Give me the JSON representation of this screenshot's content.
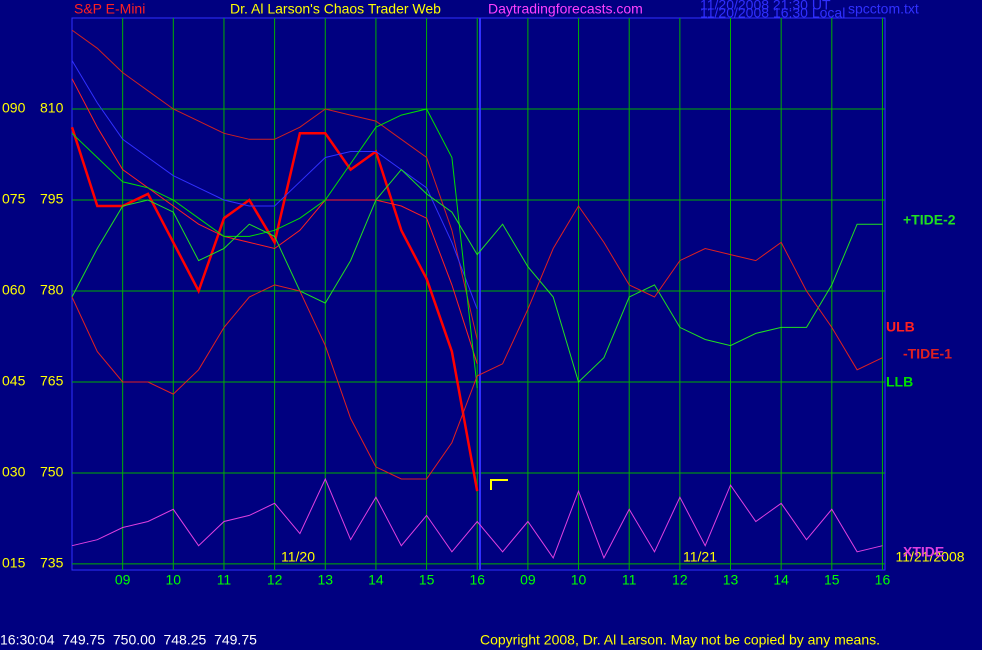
{
  "chart_data": {
    "type": "line",
    "title": "Dr. Al Larson's Chaos Trader Web",
    "symbol": "S&P E-Mini",
    "site": "Daytradingforecasts.com",
    "time_ut": "11/20/2008 21:30 UT",
    "time_local": "11/20/2008 16:30 Local",
    "file": "spcctom.txt",
    "status": "16:30:04  749.75  750.00  748.25  749.75",
    "copyright": "Copyright 2008, Dr. Al Larson. May not be copied by any means.",
    "date_labels": [
      "11/20",
      "11/21",
      "11/21/2008"
    ],
    "x": [
      0,
      0.5,
      1,
      1.5,
      2,
      2.5,
      3,
      3.5,
      4,
      4.5,
      5,
      5.5,
      6,
      6.5,
      7,
      7.5,
      8,
      8.5,
      9,
      9.5,
      10,
      10.5,
      11,
      11.5,
      12,
      12.5,
      13,
      13.5,
      14,
      14.5,
      15,
      15.5,
      16
    ],
    "xlim": [
      0,
      16.05
    ],
    "xticks": [
      {
        "value": 1,
        "label": "09"
      },
      {
        "value": 2,
        "label": "10"
      },
      {
        "value": 3,
        "label": "11"
      },
      {
        "value": 4,
        "label": "12"
      },
      {
        "value": 5,
        "label": "13"
      },
      {
        "value": 6,
        "label": "14"
      },
      {
        "value": 7,
        "label": "15"
      },
      {
        "value": 8,
        "label": "16"
      },
      {
        "value": 9,
        "label": "09"
      },
      {
        "value": 10,
        "label": "10"
      },
      {
        "value": 11,
        "label": "11"
      },
      {
        "value": 12,
        "label": "12"
      },
      {
        "value": 13,
        "label": "13"
      },
      {
        "value": 14,
        "label": "14"
      },
      {
        "value": 15,
        "label": "15"
      },
      {
        "value": 16,
        "label": "16"
      }
    ],
    "ylim": [
      734,
      825
    ],
    "yticks": [
      735,
      750,
      765,
      780,
      795,
      810
    ],
    "y2lim": [
      14,
      105
    ],
    "y2ticks": [
      {
        "value": 15,
        "label": "015"
      },
      {
        "value": 30,
        "label": "030"
      },
      {
        "value": 45,
        "label": "045"
      },
      {
        "value": 60,
        "label": "060"
      },
      {
        "value": 75,
        "label": "075"
      },
      {
        "value": 90,
        "label": "090"
      }
    ],
    "grid": true,
    "series": [
      {
        "color": "#ff0000",
        "values": [
          807,
          794,
          794,
          796,
          788,
          780,
          792,
          795,
          788,
          806,
          806,
          800,
          803,
          790,
          782,
          770,
          747,
          null,
          null,
          null,
          null,
          null,
          null,
          null,
          null,
          null,
          null,
          null,
          null,
          null,
          null,
          null,
          null
        ]
      },
      {
        "color": "#d02020",
        "values": [
          823,
          820,
          816,
          813,
          810,
          808,
          806,
          805,
          805,
          807,
          810,
          809,
          808,
          805,
          802,
          790,
          772,
          null,
          null,
          null,
          null,
          null,
          null,
          null,
          null,
          null,
          null,
          null,
          null,
          null,
          null,
          null,
          null
        ]
      },
      {
        "color": "#3030ff",
        "values": [
          818,
          811,
          805,
          802,
          799,
          797,
          795,
          794,
          794,
          798,
          802,
          803,
          803,
          800,
          797,
          788,
          777,
          null,
          null,
          null,
          null,
          null,
          null,
          null,
          null,
          null,
          null,
          null,
          null,
          null,
          null,
          null,
          null
        ]
      },
      {
        "name": "ULB",
        "color": "#ff2020",
        "values": [
          815,
          807,
          800,
          797,
          794,
          791,
          789,
          788,
          787,
          790,
          795,
          795,
          795,
          794,
          792,
          781,
          768,
          null,
          null,
          null,
          null,
          null,
          null,
          null,
          null,
          null,
          null,
          null,
          null,
          null,
          null,
          null,
          null
        ]
      },
      {
        "name": "LLB",
        "color": "#00e000",
        "values": [
          806,
          802,
          798,
          797,
          795,
          792,
          789,
          789,
          790,
          792,
          795,
          801,
          807,
          809,
          810,
          802,
          764,
          null,
          null,
          null,
          null,
          null,
          null,
          null,
          null,
          null,
          null,
          null,
          null,
          null,
          null,
          null,
          null
        ]
      },
      {
        "name": "+TIDE-2",
        "color": "#20e020",
        "values": [
          779,
          787,
          794,
          795,
          793,
          785,
          787,
          791,
          789,
          780,
          778,
          785,
          795,
          800,
          796,
          793,
          786,
          791,
          784,
          779,
          765,
          769,
          779,
          781,
          774,
          772,
          771,
          773,
          774,
          774,
          781,
          791,
          791
        ]
      },
      {
        "name": "-TIDE-1",
        "color": "#e02020",
        "values": [
          779,
          770,
          765,
          765,
          763,
          767,
          774,
          779,
          781,
          780,
          771,
          759,
          751,
          749,
          749,
          755,
          766,
          768,
          777,
          787,
          794,
          788,
          781,
          779,
          785,
          787,
          786,
          785,
          788,
          780,
          774,
          767,
          769
        ]
      },
      {
        "name": "XTIDE",
        "color": "#e040e0",
        "axis": "y2",
        "values": [
          18,
          19,
          21,
          22,
          24,
          18,
          22,
          23,
          25,
          20,
          29,
          19,
          26,
          18,
          23,
          17,
          22,
          17,
          22,
          16,
          27,
          16,
          24,
          17,
          26,
          18,
          28,
          22,
          25,
          19,
          24,
          17,
          18
        ]
      }
    ]
  }
}
